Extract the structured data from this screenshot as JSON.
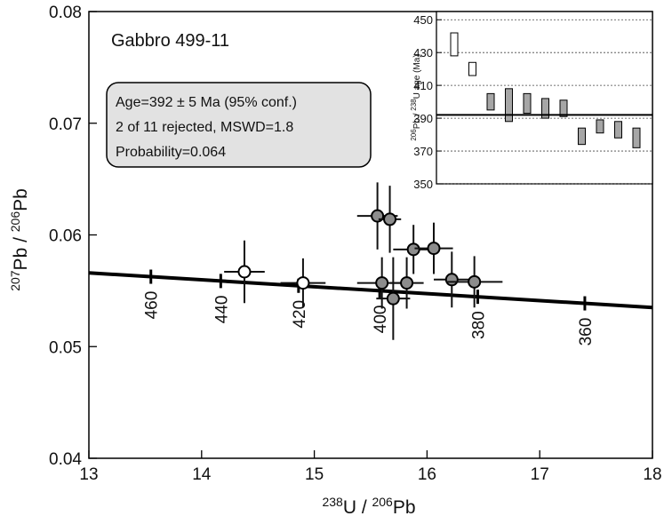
{
  "chart_data": {
    "type": "scatter",
    "title": "Gabbro 499-11",
    "xlabel": {
      "sup": "238",
      "base": "U / ",
      "sup2": "206",
      "base2": "Pb"
    },
    "ylabel": {
      "sup": "207",
      "base": "Pb / ",
      "sup2": "206",
      "base2": "Pb"
    },
    "xlim": [
      13,
      18
    ],
    "ylim": [
      0.04,
      0.08
    ],
    "x_ticks": [
      "13",
      "14",
      "15",
      "16",
      "17",
      "18"
    ],
    "y_ticks": [
      "0.04",
      "0.05",
      "0.06",
      "0.07",
      "0.08"
    ],
    "result_box": [
      "Age=392 ± 5 Ma (95% conf.)",
      "2 of 11 rejected, MSWD=1.8",
      "Probability=0.064"
    ],
    "concordia": {
      "line": [
        [
          13.0,
          0.0566
        ],
        [
          18.0,
          0.0535
        ]
      ],
      "age_marks": [
        {
          "age": "460",
          "x": 13.55
        },
        {
          "age": "440",
          "x": 14.17
        },
        {
          "age": "420",
          "x": 14.86
        },
        {
          "age": "400",
          "x": 15.58
        },
        {
          "age": "380",
          "x": 16.45
        },
        {
          "age": "360",
          "x": 17.4
        }
      ]
    },
    "points": [
      {
        "x": 14.38,
        "y": 0.0567,
        "xerr": 0.18,
        "yerr": 0.0028,
        "rejected": true
      },
      {
        "x": 14.9,
        "y": 0.0557,
        "xerr": 0.2,
        "yerr": 0.0022,
        "rejected": true
      },
      {
        "x": 15.56,
        "y": 0.0617,
        "xerr": 0.18,
        "yerr": 0.003,
        "rejected": false
      },
      {
        "x": 15.67,
        "y": 0.0614,
        "xerr": 0.1,
        "yerr": 0.003,
        "rejected": false
      },
      {
        "x": 15.6,
        "y": 0.0557,
        "xerr": 0.22,
        "yerr": 0.0023,
        "rejected": false
      },
      {
        "x": 15.7,
        "y": 0.0543,
        "xerr": 0.15,
        "yerr": 0.0037,
        "rejected": false
      },
      {
        "x": 15.82,
        "y": 0.0557,
        "xerr": 0.15,
        "yerr": 0.0023,
        "rejected": false
      },
      {
        "x": 15.88,
        "y": 0.0587,
        "xerr": 0.18,
        "yerr": 0.0022,
        "rejected": false
      },
      {
        "x": 16.06,
        "y": 0.0588,
        "xerr": 0.17,
        "yerr": 0.0023,
        "rejected": false
      },
      {
        "x": 16.22,
        "y": 0.056,
        "xerr": 0.16,
        "yerr": 0.0025,
        "rejected": false
      },
      {
        "x": 16.42,
        "y": 0.0558,
        "xerr": 0.25,
        "yerr": 0.0023,
        "rejected": false
      }
    ],
    "inset": {
      "ylabel": {
        "sup": "206",
        "mid": "Pb / ",
        "sup2": "238",
        "tail": "U  age (Ma)"
      },
      "ylim": [
        350,
        455
      ],
      "y_ticks": [
        "350",
        "370",
        "390",
        "410",
        "430",
        "450"
      ],
      "mean_age": 392,
      "bars": [
        {
          "center": 435,
          "half": 7,
          "rejected": true
        },
        {
          "center": 420,
          "half": 4,
          "rejected": true
        },
        {
          "center": 400,
          "half": 5,
          "rejected": false
        },
        {
          "center": 398,
          "half": 10,
          "rejected": false
        },
        {
          "center": 399,
          "half": 6,
          "rejected": false
        },
        {
          "center": 396,
          "half": 6,
          "rejected": false
        },
        {
          "center": 396,
          "half": 5,
          "rejected": false
        },
        {
          "center": 379,
          "half": 5,
          "rejected": false
        },
        {
          "center": 385,
          "half": 4,
          "rejected": false
        },
        {
          "center": 383,
          "half": 5,
          "rejected": false
        },
        {
          "center": 378,
          "half": 6,
          "rejected": false
        }
      ]
    }
  }
}
